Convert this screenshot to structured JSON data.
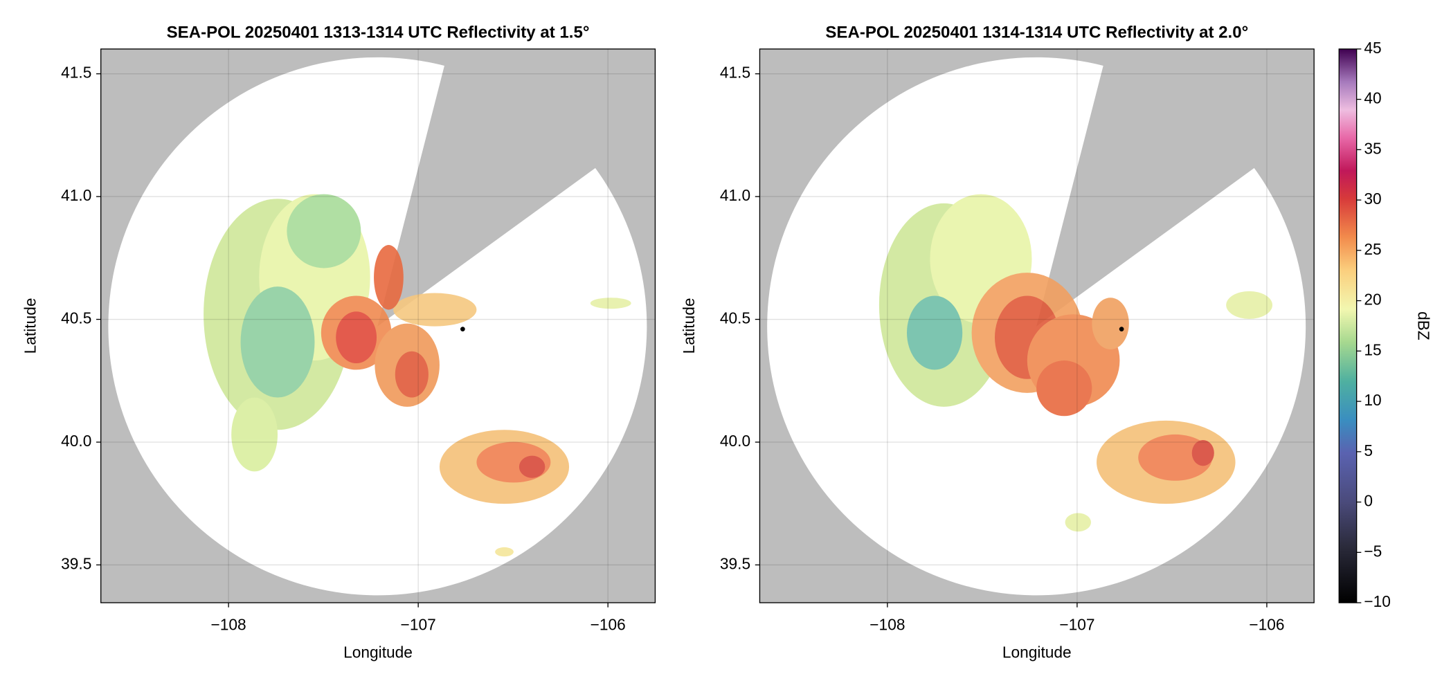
{
  "chart_data": [
    {
      "type": "radar",
      "title": "SEA-POL 20250401 1313-1314 UTC Reflectivity at 1.5°",
      "x_label": "Longitude",
      "y_label": "Latitude",
      "xlim": [
        -108.673,
        -105.751
      ],
      "ylim": [
        39.346,
        41.601
      ],
      "xticks": [
        {
          "value": -108,
          "label": "−108"
        },
        {
          "value": -107,
          "label": "−107"
        },
        {
          "value": -106,
          "label": "−106"
        }
      ],
      "yticks": [
        39.5,
        {
          "value": 40,
          "label": "40.0"
        },
        40.5,
        {
          "value": 41,
          "label": "41.0"
        },
        41.5
      ],
      "grid": true
    },
    {
      "type": "radar",
      "title": "SEA-POL 20250401 1314-1314 UTC Reflectivity at 2.0°",
      "x_label": "Longitude",
      "y_label": "Latitude",
      "xlim": [
        -108.673,
        -105.751
      ],
      "ylim": [
        39.346,
        41.601
      ],
      "xticks": [
        {
          "value": -108,
          "label": "−108"
        },
        {
          "value": -107,
          "label": "−107"
        },
        {
          "value": -106,
          "label": "−106"
        }
      ],
      "yticks": [
        39.5,
        {
          "value": 40,
          "label": "40.0"
        },
        40.5,
        {
          "value": 41,
          "label": "41.0"
        },
        41.5
      ],
      "grid": true
    },
    {
      "type": "colorbar",
      "label": "dBZ",
      "ylim": [
        -10,
        45
      ],
      "yticks": [
        {
          "value": -10,
          "label": "−10"
        },
        {
          "value": -5,
          "label": "−5"
        },
        0,
        5,
        10,
        15,
        20,
        25,
        30,
        35,
        40,
        45
      ]
    }
  ]
}
